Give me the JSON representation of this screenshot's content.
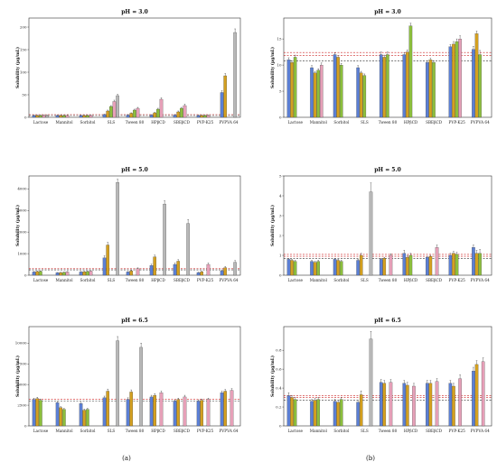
{
  "figure": {
    "label_a": "(a)",
    "label_b": "(b)"
  },
  "series_colors": [
    "#5b7fd4",
    "#d4a020",
    "#8cbf3c",
    "#e6a0b8",
    "#b8b8b8"
  ],
  "chart_data": [
    {
      "type": "bar",
      "title": "pH = 3.0",
      "ylabel": "Solubility (µg/mL)",
      "ylim": [
        0,
        220
      ],
      "yticks": [
        0,
        50,
        100,
        150,
        200
      ],
      "categories": [
        "Lactose",
        "Mannitol",
        "Sorbitol",
        "SLS",
        "Tween 80",
        "HPβCD",
        "SBEβCD",
        "PVP-K25",
        "PVPVA 64"
      ],
      "values": [
        [
          4,
          4,
          4,
          4,
          4
        ],
        [
          4,
          4,
          4,
          4,
          0
        ],
        [
          4,
          4,
          4,
          4,
          0
        ],
        [
          6,
          14,
          24,
          35,
          48
        ],
        [
          5,
          9,
          16,
          20,
          0
        ],
        [
          5,
          10,
          18,
          40,
          0
        ],
        [
          5,
          12,
          20,
          26,
          0
        ],
        [
          4,
          4,
          4,
          4,
          0
        ],
        [
          55,
          92,
          0,
          0,
          188
        ]
      ],
      "errors": [
        [
          1,
          1,
          1,
          1,
          1
        ],
        [
          1,
          1,
          1,
          1,
          0
        ],
        [
          1,
          1,
          1,
          1,
          0
        ],
        [
          1,
          2,
          2,
          3,
          3
        ],
        [
          1,
          1,
          2,
          2,
          0
        ],
        [
          1,
          1,
          2,
          3,
          0
        ],
        [
          1,
          2,
          2,
          3,
          0
        ],
        [
          1,
          1,
          1,
          1,
          0
        ],
        [
          4,
          5,
          0,
          0,
          8
        ]
      ],
      "ref_lines": [
        {
          "value": 6,
          "color": "#cc2222"
        },
        {
          "value": 4,
          "color": "#333333"
        }
      ]
    },
    {
      "type": "bar",
      "title": "pH = 3.0",
      "ylabel": "Solubility (µg/mL)",
      "ylim": [
        0,
        19
      ],
      "yticks": [
        0,
        5,
        10,
        15
      ],
      "categories": [
        "Lactose",
        "Mannitol",
        "Sorbitol",
        "SLS",
        "Tween 80",
        "HPβCD",
        "SBEβCD",
        "PVP-K25",
        "PVPVA 64"
      ],
      "values": [
        [
          11,
          10.5,
          11.5,
          0,
          0
        ],
        [
          9.5,
          8.5,
          9,
          10,
          0
        ],
        [
          12,
          11.5,
          10,
          0,
          0
        ],
        [
          9.5,
          8.5,
          8,
          0,
          0
        ],
        [
          12,
          11.5,
          12,
          0,
          0
        ],
        [
          12,
          12.5,
          17.5,
          0,
          0
        ],
        [
          10.5,
          11,
          10.5,
          0,
          0
        ],
        [
          13.5,
          14,
          14.5,
          15,
          0
        ],
        [
          13,
          16,
          12,
          0,
          0
        ]
      ],
      "errors": [
        [
          0.4,
          0.3,
          0.4,
          0,
          0
        ],
        [
          0.4,
          0.3,
          0.3,
          0.4,
          0
        ],
        [
          0.3,
          0.3,
          0.3,
          0,
          0
        ],
        [
          0.4,
          0.3,
          0.3,
          0,
          0
        ],
        [
          0.5,
          0.4,
          0.5,
          0,
          0
        ],
        [
          0.4,
          0.4,
          0.5,
          0,
          0
        ],
        [
          0.3,
          0.3,
          0.3,
          0,
          0
        ],
        [
          0.4,
          0.5,
          0.5,
          0.6,
          0
        ],
        [
          0.6,
          0.5,
          0.8,
          0,
          0
        ]
      ],
      "ref_lines": [
        {
          "value": 11.8,
          "color": "#cc2222"
        },
        {
          "value": 10.8,
          "color": "#333333"
        },
        {
          "value": 12.4,
          "color": "#cc2222"
        }
      ]
    },
    {
      "type": "bar",
      "title": "pH = 5.0",
      "ylabel": "Solubility (µg/mL)",
      "ylim": [
        0,
        4600
      ],
      "yticks": [
        0,
        1000,
        2000,
        3000,
        4000
      ],
      "categories": [
        "Lactose",
        "Mannitol",
        "Sorbitol",
        "SLS",
        "Tween 80",
        "HPβCD",
        "SBEβCD",
        "PVP-K25",
        "PVPVA 64"
      ],
      "values": [
        [
          150,
          170,
          180,
          0,
          0
        ],
        [
          110,
          120,
          130,
          150,
          0
        ],
        [
          150,
          160,
          170,
          190,
          0
        ],
        [
          800,
          1400,
          0,
          0,
          4300
        ],
        [
          150,
          200,
          0,
          300,
          0
        ],
        [
          450,
          850,
          0,
          0,
          3300
        ],
        [
          500,
          650,
          0,
          0,
          2400
        ],
        [
          120,
          160,
          0,
          500,
          0
        ],
        [
          200,
          350,
          0,
          0,
          600
        ]
      ],
      "errors": [
        [
          20,
          20,
          20,
          0,
          0
        ],
        [
          15,
          15,
          15,
          20,
          0
        ],
        [
          20,
          20,
          20,
          20,
          0
        ],
        [
          100,
          120,
          0,
          0,
          150
        ],
        [
          20,
          30,
          0,
          40,
          0
        ],
        [
          60,
          80,
          0,
          0,
          150
        ],
        [
          60,
          70,
          0,
          0,
          180
        ],
        [
          20,
          25,
          0,
          60,
          0
        ],
        [
          30,
          50,
          0,
          0,
          80
        ]
      ],
      "ref_lines": [
        {
          "value": 300,
          "color": "#cc2222"
        },
        {
          "value": 250,
          "color": "#333333"
        }
      ]
    },
    {
      "type": "bar",
      "title": "pH = 5.0",
      "ylabel": "Solubility (µg/mL)",
      "ylim": [
        0,
        5
      ],
      "yticks": [
        0,
        1,
        2,
        3,
        4,
        5
      ],
      "categories": [
        "Lactose",
        "Mannitol",
        "Sorbitol",
        "SLS",
        "Tween 80",
        "HPβCD",
        "SBEβCD",
        "PVP-K25",
        "PVPVA 64"
      ],
      "values": [
        [
          0.8,
          0.75,
          0.7,
          0,
          0
        ],
        [
          0.7,
          0.65,
          0.7,
          0,
          0
        ],
        [
          0.8,
          0.75,
          0.7,
          0,
          0
        ],
        [
          0.75,
          1.0,
          0,
          0,
          4.2
        ],
        [
          0.8,
          0.85,
          0,
          1.0,
          0
        ],
        [
          1.1,
          0.9,
          1.0,
          0,
          0
        ],
        [
          0.9,
          0.95,
          0,
          1.4,
          0
        ],
        [
          1.0,
          1.1,
          1.05,
          0,
          0
        ],
        [
          1.4,
          1.1,
          1.1,
          0,
          0
        ]
      ],
      "errors": [
        [
          0.05,
          0.05,
          0.05,
          0,
          0
        ],
        [
          0.05,
          0.05,
          0.05,
          0,
          0
        ],
        [
          0.05,
          0.05,
          0.05,
          0,
          0
        ],
        [
          0.05,
          0.1,
          0,
          0,
          0.45
        ],
        [
          0.05,
          0.05,
          0,
          0.08,
          0
        ],
        [
          0.15,
          0.1,
          0.1,
          0,
          0
        ],
        [
          0.05,
          0.05,
          0,
          0.12,
          0
        ],
        [
          0.1,
          0.1,
          0.1,
          0,
          0
        ],
        [
          0.12,
          0.15,
          0.2,
          0,
          0
        ]
      ],
      "ref_lines": [
        {
          "value": 0.95,
          "color": "#cc2222"
        },
        {
          "value": 0.85,
          "color": "#333333"
        },
        {
          "value": 1.05,
          "color": "#cc2222"
        }
      ]
    },
    {
      "type": "bar",
      "title": "pH = 6.5",
      "ylabel": "Solubility (µg/mL)",
      "ylim": [
        0,
        12000
      ],
      "yticks": [
        0,
        2500,
        5000,
        7500,
        10000
      ],
      "categories": [
        "Lactose",
        "Mannitol",
        "Sorbitol",
        "SLS",
        "Tween 80",
        "HPβCD",
        "SBEβCD",
        "PVP-K25",
        "PVPVA 64"
      ],
      "values": [
        [
          3200,
          3300,
          3100,
          0,
          0
        ],
        [
          2800,
          2200,
          2000,
          0,
          0
        ],
        [
          2700,
          1900,
          2000,
          0,
          0
        ],
        [
          3400,
          4200,
          0,
          0,
          10300
        ],
        [
          3200,
          4100,
          0,
          0,
          9500
        ],
        [
          3500,
          3700,
          0,
          4000,
          0
        ],
        [
          3000,
          3200,
          0,
          3500,
          0
        ],
        [
          3000,
          3100,
          0,
          3200,
          0
        ],
        [
          4000,
          4200,
          0,
          4300,
          0
        ]
      ],
      "errors": [
        [
          150,
          150,
          150,
          0,
          0
        ],
        [
          150,
          120,
          120,
          0,
          0
        ],
        [
          150,
          120,
          120,
          0,
          0
        ],
        [
          200,
          250,
          0,
          0,
          500
        ],
        [
          200,
          250,
          0,
          0,
          500
        ],
        [
          200,
          200,
          0,
          200,
          0
        ],
        [
          150,
          150,
          0,
          200,
          0
        ],
        [
          150,
          150,
          0,
          150,
          0
        ],
        [
          200,
          200,
          0,
          200,
          0
        ]
      ],
      "ref_lines": [
        {
          "value": 3200,
          "color": "#cc2222"
        },
        {
          "value": 3000,
          "color": "#333333"
        }
      ]
    },
    {
      "type": "bar",
      "title": "pH = 6.5",
      "ylabel": "Solubility (µg/mL)",
      "ylim": [
        0,
        1.05
      ],
      "yticks": [
        0,
        0.2,
        0.4,
        0.6,
        0.8
      ],
      "categories": [
        "Lactose",
        "Mannitol",
        "Sorbitol",
        "SLS",
        "Tween 80",
        "HPβCD",
        "SBEβCD",
        "PVP-K25",
        "PVPVA 64"
      ],
      "values": [
        [
          0.32,
          0.3,
          0.28,
          0,
          0
        ],
        [
          0.26,
          0.27,
          0.28,
          0,
          0
        ],
        [
          0.26,
          0.25,
          0.28,
          0,
          0
        ],
        [
          0.25,
          0.33,
          0,
          0,
          0.92
        ],
        [
          0.46,
          0.45,
          0,
          0.46,
          0
        ],
        [
          0.45,
          0.43,
          0,
          0.42,
          0
        ],
        [
          0.45,
          0.45,
          0,
          0.47,
          0
        ],
        [
          0.45,
          0.42,
          0,
          0.5,
          0
        ],
        [
          0.58,
          0.65,
          0,
          0.68,
          0
        ]
      ],
      "errors": [
        [
          0.03,
          0.02,
          0.02,
          0,
          0
        ],
        [
          0.02,
          0.02,
          0.02,
          0,
          0
        ],
        [
          0.02,
          0.02,
          0.02,
          0,
          0
        ],
        [
          0.02,
          0.04,
          0,
          0,
          0.08
        ],
        [
          0.03,
          0.03,
          0,
          0.03,
          0
        ],
        [
          0.03,
          0.03,
          0,
          0.03,
          0
        ],
        [
          0.03,
          0.03,
          0,
          0.03,
          0
        ],
        [
          0.03,
          0.03,
          0,
          0.04,
          0
        ],
        [
          0.04,
          0.04,
          0,
          0.04,
          0
        ]
      ],
      "ref_lines": [
        {
          "value": 0.3,
          "color": "#cc2222"
        },
        {
          "value": 0.27,
          "color": "#333333"
        },
        {
          "value": 0.32,
          "color": "#cc2222"
        }
      ]
    }
  ]
}
